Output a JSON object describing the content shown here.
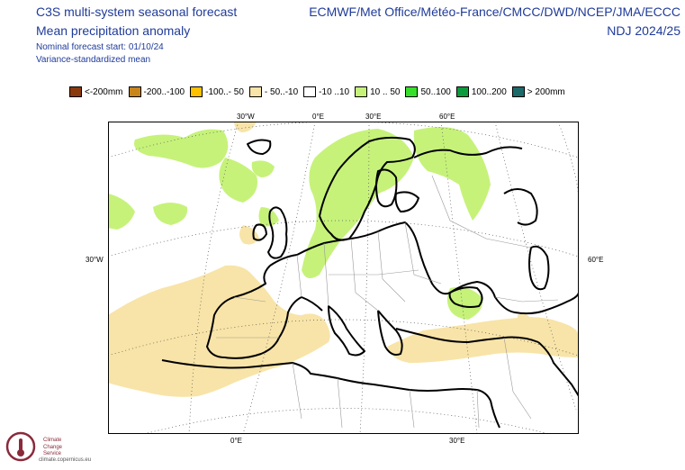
{
  "header": {
    "title1": "C3S multi-system seasonal forecast",
    "title2": "Mean precipitation anomaly",
    "title3": "Nominal forecast start: 01/10/24",
    "title4": "Variance-standardized mean",
    "systems": "ECMWF/Met Office/Météo-France/CMCC/DWD/NCEP/JMA/ECCC",
    "season": "NDJ 2024/25"
  },
  "legend": [
    {
      "label": "<-200mm",
      "color": "#8b3a0e"
    },
    {
      "label": "-200..-100",
      "color": "#c9841a"
    },
    {
      "label": "-100..- 50",
      "color": "#ffc000"
    },
    {
      "label": "- 50..-10",
      "color": "#f8e4a8"
    },
    {
      "label": "-10 ..10",
      "color": "#ffffff"
    },
    {
      "label": "10 .. 50",
      "color": "#c6f27a"
    },
    {
      "label": "50..100",
      "color": "#36e02a"
    },
    {
      "label": "100..200",
      "color": "#0a9c3c"
    },
    {
      "label": "> 200mm",
      "color": "#1c6a6a"
    }
  ],
  "gridlabels": {
    "top_30w": "30°W",
    "top_0e": "0°E",
    "top_30e": "30°E",
    "top_60e": "60°E",
    "left_30w": "30°W",
    "right_60e": "60°E",
    "bottom_0e": "0°E",
    "bottom_30e": "30°E"
  },
  "logo": {
    "line1": "Climate",
    "line2": "Change Service",
    "url": "climate.copernicus.eu"
  }
}
